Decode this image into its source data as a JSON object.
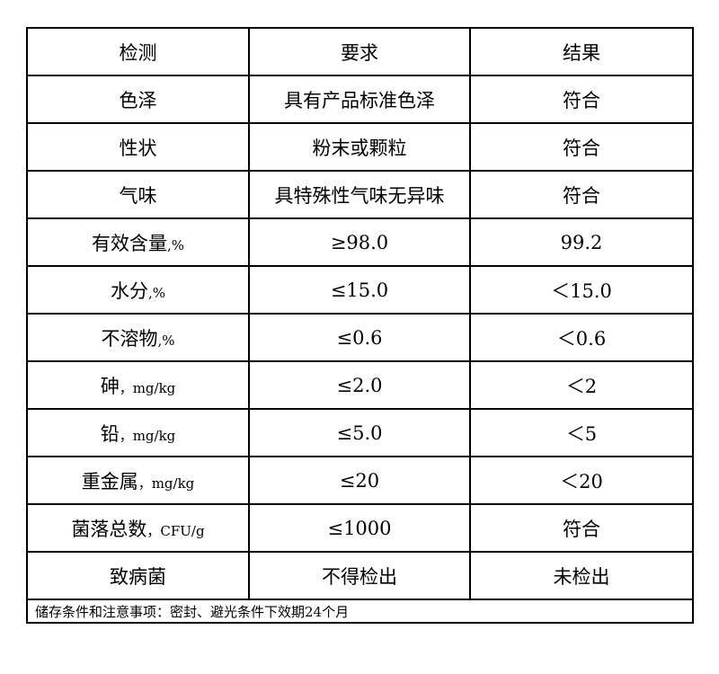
{
  "header": [
    "检测",
    "要求",
    "结果"
  ],
  "rows": [
    {
      "item": "色泽",
      "unit": "",
      "requirement": "具有产品标准色泽",
      "result": "符合"
    },
    {
      "item": "性状",
      "unit": "",
      "requirement": "粉末或颗粒",
      "result": "符合"
    },
    {
      "item": "气味",
      "unit": "",
      "requirement": "具特殊性气味无异味",
      "result": "符合"
    },
    {
      "item": "有效含量",
      "unit": ",%",
      "requirement": "≥98.0",
      "result": "99.2"
    },
    {
      "item": "水分",
      "unit": ",%",
      "requirement": "≤15.0",
      "result": "＜15.0"
    },
    {
      "item": "不溶物",
      "unit": ",%",
      "requirement": "≤0.6",
      "result": "＜0.6"
    },
    {
      "item": "砷",
      "unit": "，mg/kg",
      "requirement": "≤2.0",
      "result": "＜2"
    },
    {
      "item": "铅",
      "unit": "，mg/kg",
      "requirement": "≤5.0",
      "result": "＜5"
    },
    {
      "item": "重金属",
      "unit": "，mg/kg",
      "requirement": "≤20",
      "result": "＜20"
    },
    {
      "item": "菌落总数",
      "unit": "，CFU/g",
      "requirement": "≤1000",
      "result": "符合"
    },
    {
      "item": "致病菌",
      "unit": "",
      "requirement": "不得检出",
      "result": "未检出"
    }
  ],
  "footer": "储存条件和注意事项：密封、避光条件下效期24个月"
}
